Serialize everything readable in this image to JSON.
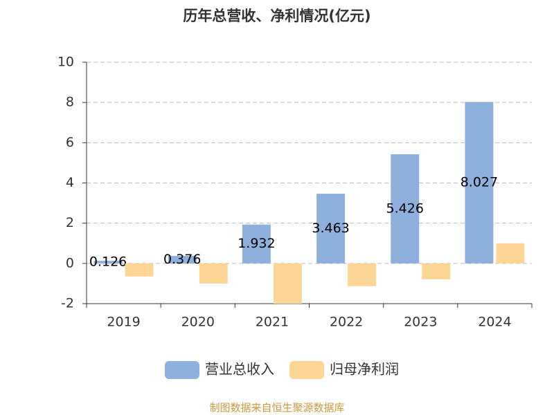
{
  "chart_data": {
    "type": "bar",
    "title": "历年总营收、净利情况(亿元)",
    "categories": [
      "2019",
      "2020",
      "2021",
      "2022",
      "2023",
      "2024"
    ],
    "series": [
      {
        "name": "营业总收入",
        "color": "#8eb0dc",
        "values": [
          0.126,
          0.376,
          1.932,
          3.463,
          5.426,
          8.027
        ],
        "data_labels": true
      },
      {
        "name": "归母净利润",
        "color": "#fdd695",
        "values": [
          -0.65,
          -1.0,
          -2.0,
          -1.13,
          -0.79,
          1.0
        ]
      }
    ],
    "ylim": [
      -2,
      10
    ],
    "yticks": [
      -2,
      0,
      2,
      4,
      6,
      8,
      10
    ],
    "grid": true,
    "legend": "bottom",
    "source": "制图数据来自恒生聚源数据库"
  }
}
